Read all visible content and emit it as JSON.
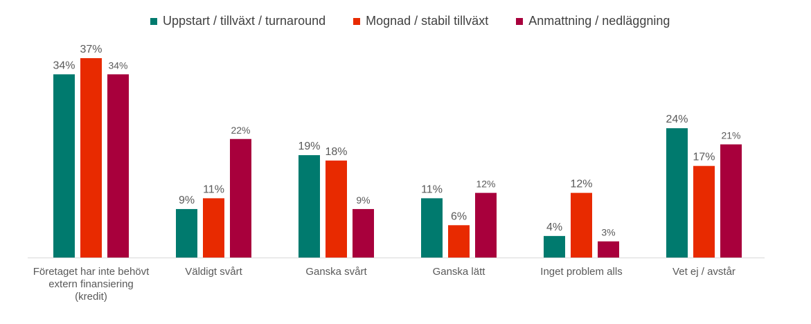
{
  "chart_data": {
    "type": "bar",
    "categories": [
      "Företaget har inte behövt extern finansiering (kredit)",
      "Väldigt svårt",
      "Ganska svårt",
      "Ganska lätt",
      "Inget problem alls",
      "Vet ej / avstår"
    ],
    "category_lines": [
      [
        "Företaget har inte behövt",
        "extern finansiering",
        "(kredit)"
      ],
      [
        "Väldigt svårt"
      ],
      [
        "Ganska svårt"
      ],
      [
        "Ganska lätt"
      ],
      [
        "Inget problem alls"
      ],
      [
        "Vet ej / avstår"
      ]
    ],
    "series": [
      {
        "name": "Uppstart / tillväxt / turnaround",
        "color": "#007a6e",
        "values": [
          34,
          9,
          19,
          11,
          4,
          24
        ],
        "labels": [
          "34%",
          "9%",
          "19%",
          "11%",
          "4%",
          "24%"
        ]
      },
      {
        "name": "Mognad / stabil tillväxt",
        "color": "#e82a00",
        "values": [
          37,
          11,
          18,
          6,
          12,
          17
        ],
        "labels": [
          "37%",
          "11%",
          "18%",
          "6%",
          "12%",
          "17%"
        ]
      },
      {
        "name": "Anmattning / nedläggning",
        "color": "#a8003c",
        "values": [
          34,
          22,
          9,
          12,
          3,
          21
        ],
        "labels": [
          "34%",
          "22%",
          "9%",
          "12%",
          "3%",
          "21%"
        ]
      }
    ],
    "title": "",
    "xlabel": "",
    "ylabel": "",
    "ylim": [
      0,
      37
    ],
    "grid": false,
    "legend_position": "top"
  }
}
